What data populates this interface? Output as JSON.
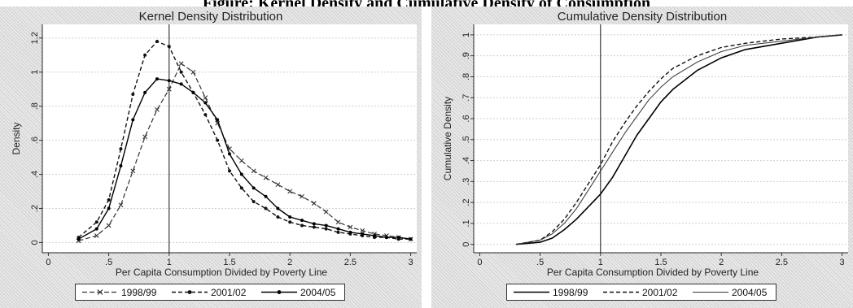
{
  "banner": "Figure: Kernel Density and Cumulative Density of Consumption",
  "chart_data": [
    {
      "type": "line",
      "title": "Kernel Density Distribution",
      "xlabel": "Per Capita Consumption Divided by Poverty Line",
      "ylabel": "Density",
      "xlim": [
        -0.05,
        3.05
      ],
      "ylim": [
        -0.06,
        1.28
      ],
      "xticks": [
        0,
        0.5,
        1,
        1.5,
        2,
        2.5,
        3
      ],
      "xtick_labels": [
        "0",
        ".5",
        "1",
        "1.5",
        "2",
        "2.5",
        "3"
      ],
      "yticks": [
        0,
        0.2,
        0.4,
        0.6,
        0.8,
        1,
        1.2
      ],
      "ytick_labels": [
        "0",
        ".2",
        ".4",
        ".6",
        ".8",
        "1",
        "1.2"
      ],
      "vline": 1,
      "grid": true,
      "legend_position": "bottom",
      "series": [
        {
          "name": "1998/99",
          "style": "dash-x",
          "color": "#333333",
          "x": [
            0.25,
            0.4,
            0.5,
            0.6,
            0.7,
            0.8,
            0.9,
            1.0,
            1.1,
            1.2,
            1.3,
            1.4,
            1.5,
            1.6,
            1.7,
            1.8,
            1.9,
            2.0,
            2.1,
            2.2,
            2.3,
            2.4,
            2.5,
            2.6,
            2.7,
            2.8,
            2.9,
            3.0
          ],
          "y": [
            0.01,
            0.04,
            0.1,
            0.22,
            0.42,
            0.62,
            0.78,
            0.9,
            1.05,
            1.0,
            0.85,
            0.7,
            0.55,
            0.48,
            0.42,
            0.38,
            0.34,
            0.3,
            0.27,
            0.23,
            0.18,
            0.12,
            0.09,
            0.07,
            0.05,
            0.04,
            0.03,
            0.02
          ]
        },
        {
          "name": "2001/02",
          "style": "dash-dot",
          "color": "#111111",
          "x": [
            0.25,
            0.4,
            0.5,
            0.6,
            0.7,
            0.8,
            0.9,
            1.0,
            1.1,
            1.2,
            1.3,
            1.4,
            1.5,
            1.6,
            1.7,
            1.8,
            1.9,
            2.0,
            2.1,
            2.2,
            2.3,
            2.4,
            2.5,
            2.6,
            2.7,
            2.8,
            2.9,
            3.0
          ],
          "y": [
            0.03,
            0.12,
            0.25,
            0.55,
            0.87,
            1.1,
            1.18,
            1.15,
            1.0,
            0.88,
            0.75,
            0.6,
            0.42,
            0.32,
            0.24,
            0.2,
            0.15,
            0.12,
            0.1,
            0.09,
            0.08,
            0.06,
            0.05,
            0.04,
            0.03,
            0.03,
            0.02,
            0.02
          ]
        },
        {
          "name": "2004/05",
          "style": "solid-dot",
          "color": "#000000",
          "x": [
            0.25,
            0.4,
            0.5,
            0.6,
            0.7,
            0.8,
            0.9,
            1.0,
            1.1,
            1.2,
            1.3,
            1.4,
            1.5,
            1.6,
            1.7,
            1.8,
            1.9,
            2.0,
            2.1,
            2.2,
            2.3,
            2.4,
            2.5,
            2.6,
            2.7,
            2.8,
            2.9,
            3.0
          ],
          "y": [
            0.02,
            0.08,
            0.2,
            0.45,
            0.72,
            0.88,
            0.96,
            0.95,
            0.93,
            0.88,
            0.82,
            0.72,
            0.52,
            0.4,
            0.32,
            0.27,
            0.2,
            0.15,
            0.13,
            0.11,
            0.1,
            0.08,
            0.06,
            0.05,
            0.04,
            0.03,
            0.03,
            0.02
          ]
        }
      ]
    },
    {
      "type": "line",
      "title": "Cumulative Density Distribution",
      "xlabel": "Per Capita Consumption Divided by Poverty Line",
      "ylabel": "Cumulative Density",
      "xlim": [
        -0.05,
        3.05
      ],
      "ylim": [
        -0.04,
        1.05
      ],
      "xticks": [
        0,
        0.5,
        1,
        1.5,
        2,
        2.5,
        3
      ],
      "xtick_labels": [
        "0",
        ".5",
        "1",
        "1.5",
        "2",
        "2.5",
        "3"
      ],
      "yticks": [
        0,
        0.1,
        0.2,
        0.3,
        0.4,
        0.5,
        0.6,
        0.7,
        0.8,
        0.9,
        1
      ],
      "ytick_labels": [
        "0",
        ".1",
        ".2",
        ".3",
        ".4",
        ".5",
        ".6",
        ".7",
        ".8",
        ".9",
        "1"
      ],
      "vline": 1,
      "grid": true,
      "legend_position": "bottom",
      "series": [
        {
          "name": "1998/99",
          "style": "solid",
          "color": "#000000",
          "x": [
            0.3,
            0.5,
            0.6,
            0.7,
            0.8,
            0.9,
            1.0,
            1.1,
            1.2,
            1.3,
            1.4,
            1.5,
            1.6,
            1.8,
            2.0,
            2.2,
            2.5,
            2.8,
            3.0
          ],
          "y": [
            0.0,
            0.01,
            0.03,
            0.07,
            0.12,
            0.18,
            0.24,
            0.32,
            0.42,
            0.52,
            0.6,
            0.68,
            0.74,
            0.83,
            0.89,
            0.93,
            0.96,
            0.99,
            1.0
          ]
        },
        {
          "name": "2001/02",
          "style": "dash",
          "color": "#111111",
          "x": [
            0.3,
            0.5,
            0.6,
            0.7,
            0.8,
            0.9,
            1.0,
            1.1,
            1.2,
            1.3,
            1.4,
            1.5,
            1.6,
            1.8,
            2.0,
            2.2,
            2.5,
            2.8,
            3.0
          ],
          "y": [
            0.0,
            0.02,
            0.06,
            0.12,
            0.2,
            0.29,
            0.38,
            0.49,
            0.58,
            0.66,
            0.73,
            0.79,
            0.84,
            0.9,
            0.94,
            0.96,
            0.98,
            0.99,
            1.0
          ]
        },
        {
          "name": "2004/05",
          "style": "solid-thin",
          "color": "#333333",
          "x": [
            0.3,
            0.5,
            0.6,
            0.7,
            0.8,
            0.9,
            1.0,
            1.1,
            1.2,
            1.3,
            1.4,
            1.5,
            1.6,
            1.8,
            2.0,
            2.2,
            2.5,
            2.8,
            3.0
          ],
          "y": [
            0.0,
            0.02,
            0.05,
            0.1,
            0.17,
            0.26,
            0.35,
            0.44,
            0.53,
            0.61,
            0.69,
            0.75,
            0.8,
            0.87,
            0.92,
            0.95,
            0.97,
            0.99,
            1.0
          ]
        }
      ]
    }
  ]
}
